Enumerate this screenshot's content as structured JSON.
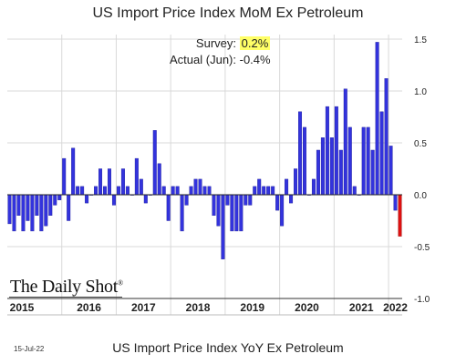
{
  "header": {
    "title": "US Import Price Index MoM Ex Petroleum"
  },
  "annotations": {
    "survey_label": "Survey:",
    "survey_value": "0.2%",
    "actual_label": "Actual (Jun):",
    "actual_value": "-0.4%"
  },
  "brand": {
    "text": "The Daily Shot",
    "mark": "®"
  },
  "footer": {
    "date": "15-Jul-22",
    "subtitle": "US Import Price Index YoY Ex Petroleum"
  },
  "colors": {
    "bar": "#3333dd",
    "bar_stroke": "#1a1a99",
    "highlight_bar": "#dd1111",
    "grid": "#d9d9d9",
    "survey_highlight": "#ffff66"
  },
  "chart_data": {
    "type": "bar",
    "ylim": [
      -1.0,
      1.5
    ],
    "yticks": [
      1.5,
      1.0,
      0.5,
      0.0,
      -0.5,
      -1.0
    ],
    "ytick_labels": [
      "1.5",
      "1.0",
      "0.5",
      "0.0",
      "-0.5",
      "-1.0"
    ],
    "grid": true,
    "start": "2015-01",
    "x_labels": [
      "2015",
      "2016",
      "2017",
      "2018",
      "2019",
      "2020",
      "2021",
      "2022"
    ],
    "values": [
      -0.28,
      -0.35,
      -0.2,
      -0.35,
      -0.25,
      -0.35,
      -0.2,
      -0.35,
      -0.3,
      -0.2,
      -0.1,
      -0.05,
      0.35,
      -0.25,
      0.45,
      0.08,
      0.08,
      -0.08,
      0.0,
      0.08,
      0.25,
      0.08,
      0.25,
      -0.1,
      0.08,
      0.25,
      0.08,
      0.0,
      0.35,
      0.15,
      -0.08,
      0.0,
      0.62,
      0.3,
      0.08,
      -0.25,
      0.08,
      0.08,
      -0.35,
      -0.1,
      0.08,
      0.15,
      0.15,
      0.08,
      0.08,
      -0.2,
      -0.3,
      -0.62,
      -0.1,
      -0.35,
      -0.35,
      -0.35,
      -0.1,
      -0.1,
      0.08,
      0.15,
      0.08,
      0.08,
      0.08,
      -0.15,
      -0.3,
      0.15,
      -0.08,
      0.25,
      0.8,
      0.65,
      0.0,
      0.15,
      0.43,
      0.55,
      0.85,
      0.55,
      0.85,
      0.43,
      1.02,
      0.65,
      0.08,
      0.0,
      0.65,
      0.65,
      0.43,
      1.47,
      0.8,
      1.12,
      0.47,
      -0.15,
      -0.4
    ],
    "highlight_last": true
  }
}
